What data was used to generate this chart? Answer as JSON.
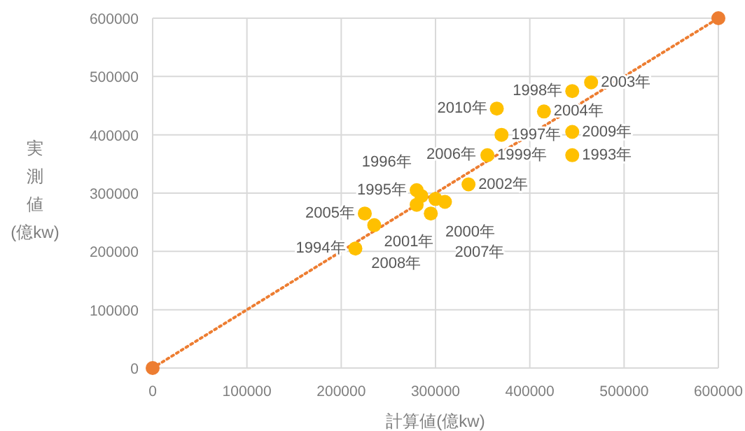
{
  "chart_data": {
    "type": "scatter",
    "xlabel": "計算値(億kw)",
    "ylabel": "実測値(億kw)",
    "xlim": [
      0,
      600000
    ],
    "ylim": [
      0,
      600000
    ],
    "xticks": [
      0,
      100000,
      200000,
      300000,
      400000,
      500000,
      600000
    ],
    "yticks": [
      0,
      100000,
      200000,
      300000,
      400000,
      500000,
      600000
    ],
    "grid": true,
    "series": [
      {
        "type": "line",
        "color": "#ed7d31",
        "line_style": "dotted",
        "marker": "circle",
        "x": [
          0,
          600000
        ],
        "values": [
          0,
          600000
        ]
      },
      {
        "color": "#ffc000",
        "marker": "circle",
        "x": [
          465000,
          445000,
          365000,
          415000,
          370000,
          445000,
          355000,
          445000,
          335000,
          225000,
          235000,
          215000,
          280000,
          285000,
          300000,
          280000,
          310000,
          295000
        ],
        "values": [
          490000,
          475000,
          445000,
          440000,
          400000,
          405000,
          365000,
          365000,
          315000,
          265000,
          245000,
          205000,
          305000,
          295000,
          290000,
          280000,
          285000,
          265000
        ]
      }
    ],
    "annotations": [
      {
        "text": "2003年",
        "x": 465000,
        "y": 490000
      },
      {
        "text": "1998年",
        "x": 445000,
        "y": 475000
      },
      {
        "text": "2010年",
        "x": 365000,
        "y": 445000
      },
      {
        "text": "2004年",
        "x": 415000,
        "y": 440000
      },
      {
        "text": "1997年",
        "x": 370000,
        "y": 400000
      },
      {
        "text": "2009年",
        "x": 445000,
        "y": 405000
      },
      {
        "text": "1999年",
        "x": 355000,
        "y": 365000
      },
      {
        "text": "1993年",
        "x": 445000,
        "y": 365000
      },
      {
        "text": "2002年",
        "x": 335000,
        "y": 315000
      },
      {
        "text": "2005年",
        "x": 225000,
        "y": 265000
      },
      {
        "text": "2001年",
        "x": 235000,
        "y": 245000
      },
      {
        "text": "1994年",
        "x": 215000,
        "y": 205000
      },
      {
        "text": "1995年",
        "x": 280000,
        "y": 305000
      },
      {
        "text": "1996年",
        "x": 285000,
        "y": 295000
      },
      {
        "text": "2000年",
        "x": 300000,
        "y": 290000
      },
      {
        "text": "2006年",
        "x": 280000,
        "y": 280000
      },
      {
        "text": "2007年",
        "x": 310000,
        "y": 285000
      },
      {
        "text": "2008年",
        "x": 295000,
        "y": 265000
      }
    ]
  }
}
